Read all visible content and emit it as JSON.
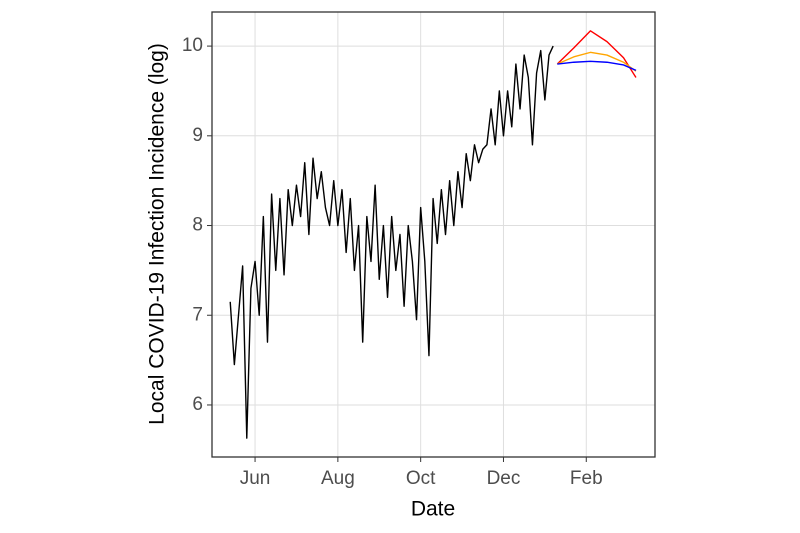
{
  "chart_data": {
    "type": "line",
    "x_label": "Date",
    "y_label": "Local COVID-19 Infection Incidence (log)",
    "xlim": [
      4.96,
      15.66
    ],
    "xticks": [
      {
        "value": 6,
        "label": "Jun"
      },
      {
        "value": 8,
        "label": "Aug"
      },
      {
        "value": 10,
        "label": "Oct"
      },
      {
        "value": 12,
        "label": "Dec"
      },
      {
        "value": 14,
        "label": "Feb"
      }
    ],
    "ylim": [
      5.42,
      10.38
    ],
    "yticks": [
      6,
      7,
      8,
      9,
      10
    ],
    "grid": true,
    "series": [
      {
        "color": "#000000",
        "x": [
          5.4,
          5.5,
          5.6,
          5.7,
          5.8,
          5.9,
          6.0,
          6.1,
          6.2,
          6.3,
          6.4,
          6.5,
          6.6,
          6.7,
          6.8,
          6.9,
          7.0,
          7.1,
          7.2,
          7.3,
          7.4,
          7.5,
          7.6,
          7.7,
          7.8,
          7.9,
          8.0,
          8.1,
          8.2,
          8.3,
          8.4,
          8.5,
          8.6,
          8.7,
          8.8,
          8.9,
          9.0,
          9.1,
          9.2,
          9.3,
          9.4,
          9.5,
          9.6,
          9.7,
          9.8,
          9.9,
          10.0,
          10.1,
          10.2,
          10.3,
          10.4,
          10.5,
          10.6,
          10.7,
          10.8,
          10.9,
          11.0,
          11.1,
          11.2,
          11.3,
          11.4,
          11.5,
          11.6,
          11.7,
          11.8,
          11.9,
          12.0,
          12.1,
          12.2,
          12.3,
          12.4,
          12.5,
          12.6,
          12.7,
          12.8,
          12.9,
          13.0,
          13.1,
          13.2
        ],
        "values": [
          7.15,
          6.45,
          7.0,
          7.55,
          5.63,
          7.3,
          7.6,
          7.0,
          8.1,
          6.7,
          8.35,
          7.5,
          8.3,
          7.45,
          8.4,
          8.0,
          8.45,
          8.1,
          8.7,
          7.9,
          8.75,
          8.3,
          8.6,
          8.2,
          8.0,
          8.5,
          8.0,
          8.4,
          7.7,
          8.3,
          7.5,
          8.0,
          6.7,
          8.1,
          7.6,
          8.45,
          7.4,
          8.0,
          7.2,
          8.1,
          7.5,
          7.9,
          7.1,
          8.0,
          7.6,
          6.95,
          8.2,
          7.6,
          6.55,
          8.3,
          7.8,
          8.4,
          7.9,
          8.5,
          8.0,
          8.6,
          8.2,
          8.8,
          8.5,
          8.9,
          8.7,
          8.85,
          8.9,
          9.3,
          8.9,
          9.5,
          9.0,
          9.5,
          9.1,
          9.8,
          9.3,
          9.9,
          9.65,
          8.9,
          9.7,
          9.95,
          9.4,
          9.9,
          10.0
        ]
      },
      {
        "color": "#ff0000",
        "x": [
          13.3,
          13.7,
          14.1,
          14.5,
          14.9,
          15.2
        ],
        "values": [
          9.8,
          9.98,
          10.17,
          10.05,
          9.87,
          9.65
        ]
      },
      {
        "color": "#ffa500",
        "x": [
          13.3,
          13.7,
          14.1,
          14.5,
          14.9,
          15.2
        ],
        "values": [
          9.8,
          9.88,
          9.93,
          9.9,
          9.82,
          9.72
        ]
      },
      {
        "color": "#0000ff",
        "x": [
          13.3,
          13.7,
          14.1,
          14.5,
          14.9,
          15.2
        ],
        "values": [
          9.8,
          9.82,
          9.83,
          9.82,
          9.79,
          9.73
        ]
      }
    ]
  }
}
